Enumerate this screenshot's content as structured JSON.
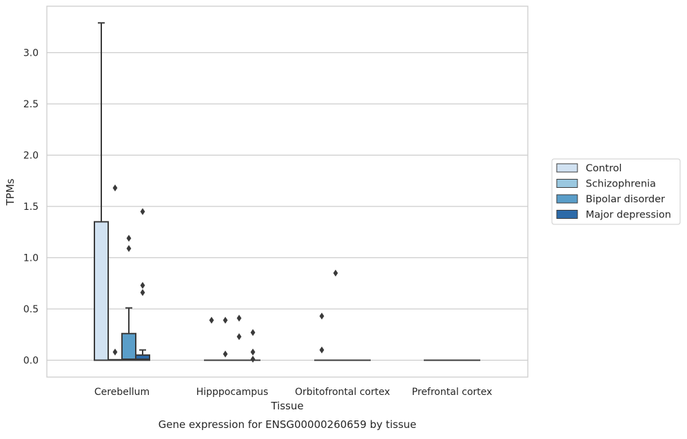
{
  "chart_data": {
    "type": "box",
    "title": "",
    "caption": "Gene expression for ENSG00000260659 by tissue",
    "xlabel": "Tissue",
    "ylabel": "TPMs",
    "ylim": [
      -0.16,
      3.45
    ],
    "yticks": [
      "0.0",
      "0.5",
      "1.0",
      "1.5",
      "2.0",
      "2.5",
      "3.0"
    ],
    "ytick_values": [
      0,
      0.5,
      1.0,
      1.5,
      2.0,
      2.5,
      3.0
    ],
    "grid": "horizontal",
    "legend_position": "right",
    "categories": [
      "Cerebellum",
      "Hipppocampus",
      "Orbitofrontal cortex",
      "Prefrontal cortex"
    ],
    "series": [
      {
        "name": "Control",
        "color": "#d1e2f2",
        "boxes": [
          {
            "q1": 0,
            "median": 0,
            "q3": 1.35,
            "whisker_low": 0,
            "whisker_high": 3.29,
            "outliers": []
          },
          {
            "q1": 0,
            "median": 0,
            "q3": 0,
            "whisker_low": 0,
            "whisker_high": 0,
            "outliers": [
              0.39
            ]
          },
          {
            "q1": 0,
            "median": 0,
            "q3": 0,
            "whisker_low": 0,
            "whisker_high": 0,
            "outliers": [
              0.43,
              0.1
            ]
          },
          {
            "q1": 0,
            "median": 0,
            "q3": 0,
            "whisker_low": 0,
            "whisker_high": 0,
            "outliers": []
          }
        ]
      },
      {
        "name": "Schizophrenia",
        "color": "#9ac8e0",
        "boxes": [
          {
            "q1": 0,
            "median": 0,
            "q3": 0.005,
            "whisker_low": 0,
            "whisker_high": 0.005,
            "outliers": [
              1.68,
              0.08
            ]
          },
          {
            "q1": 0,
            "median": 0,
            "q3": 0,
            "whisker_low": 0,
            "whisker_high": 0,
            "outliers": [
              0.39,
              0.06
            ]
          },
          {
            "q1": 0,
            "median": 0,
            "q3": 0,
            "whisker_low": 0,
            "whisker_high": 0,
            "outliers": [
              0.85
            ]
          },
          {
            "q1": 0,
            "median": 0,
            "q3": 0,
            "whisker_low": 0,
            "whisker_high": 0,
            "outliers": []
          }
        ]
      },
      {
        "name": "Bipolar disorder",
        "color": "#5a9ec9",
        "boxes": [
          {
            "q1": 0,
            "median": 0.01,
            "q3": 0.26,
            "whisker_low": 0,
            "whisker_high": 0.51,
            "outliers": [
              1.19,
              1.09
            ]
          },
          {
            "q1": 0,
            "median": 0,
            "q3": 0,
            "whisker_low": 0,
            "whisker_high": 0,
            "outliers": [
              0.41,
              0.23
            ]
          },
          {
            "q1": 0,
            "median": 0,
            "q3": 0,
            "whisker_low": 0,
            "whisker_high": 0,
            "outliers": []
          },
          {
            "q1": 0,
            "median": 0,
            "q3": 0,
            "whisker_low": 0,
            "whisker_high": 0,
            "outliers": []
          }
        ]
      },
      {
        "name": "Major depression",
        "color": "#2c6aa8",
        "boxes": [
          {
            "q1": 0,
            "median": 0.01,
            "q3": 0.05,
            "whisker_low": 0,
            "whisker_high": 0.1,
            "outliers": [
              1.45,
              0.73,
              0.66
            ]
          },
          {
            "q1": 0,
            "median": 0,
            "q3": 0,
            "whisker_low": 0,
            "whisker_high": 0,
            "outliers": [
              0.27,
              0.08,
              0.01
            ]
          },
          {
            "q1": 0,
            "median": 0,
            "q3": 0,
            "whisker_low": 0,
            "whisker_high": 0,
            "outliers": []
          },
          {
            "q1": 0,
            "median": 0,
            "q3": 0,
            "whisker_low": 0,
            "whisker_high": 0,
            "outliers": []
          }
        ]
      }
    ]
  }
}
